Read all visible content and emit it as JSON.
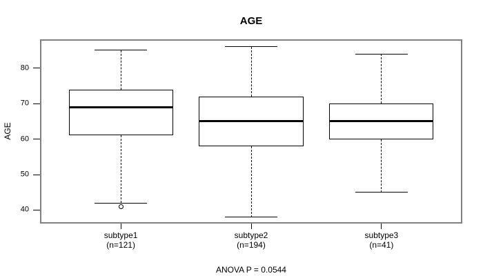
{
  "chart_data": {
    "type": "boxplot",
    "title": "AGE",
    "ylabel": "AGE",
    "footer": "ANOVA P = 0.0544",
    "yticks": [
      40,
      50,
      60,
      70,
      80
    ],
    "ylim": [
      36.2,
      88.1
    ],
    "xlim": [
      0.38,
      3.62
    ],
    "box_width": 0.8,
    "cap_width": 0.4,
    "grid": false,
    "groups": [
      {
        "x": 1,
        "label": "subtype1",
        "sublabel": "(n=121)",
        "whisker_low": 42,
        "q1": 61,
        "median": 69,
        "q3": 74,
        "whisker_high": 85,
        "outliers": [
          41
        ]
      },
      {
        "x": 2,
        "label": "subtype2",
        "sublabel": "(n=194)",
        "whisker_low": 38,
        "q1": 58,
        "median": 65,
        "q3": 72,
        "whisker_high": 86,
        "outliers": []
      },
      {
        "x": 3,
        "label": "subtype3",
        "sublabel": "(n=41)",
        "whisker_low": 45,
        "q1": 60,
        "median": 65,
        "q3": 70,
        "whisker_high": 84,
        "outliers": []
      }
    ],
    "colors": {
      "frame": "#808080",
      "box_border": "#000000",
      "median": "#000000",
      "whisker": "#000000",
      "text": "#000000",
      "background": "#ffffff"
    }
  }
}
